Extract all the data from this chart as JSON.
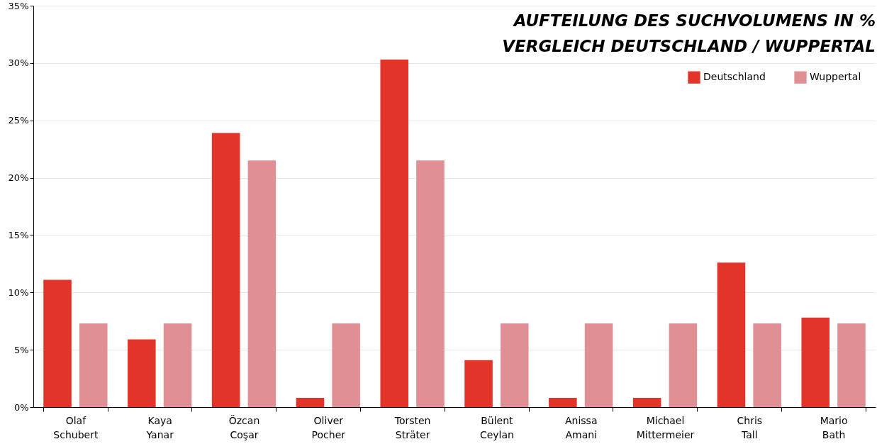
{
  "chart_data": {
    "type": "bar",
    "title": "AUFTEILUNG DES SUCHVOLUMENS IN %\nVERGLEICH DEUTSCHLAND / WUPPERTAL",
    "categories": [
      "Olaf\nSchubert",
      "Kaya\nYanar",
      "Özcan\nCoşar",
      "Oliver\nPocher",
      "Torsten\nSträter",
      "Bülent\nCeylan",
      "Anissa\nAmani",
      "Michael\nMittermeier",
      "Chris\nTall",
      "Mario\nBath"
    ],
    "series": [
      {
        "name": "Deutschland",
        "color": "#e3342a",
        "values": [
          11.1,
          5.9,
          23.9,
          0.8,
          30.3,
          4.1,
          0.8,
          0.8,
          12.6,
          7.8
        ]
      },
      {
        "name": "Wuppertal",
        "color": "#e09094",
        "values": [
          7.3,
          7.3,
          21.5,
          7.3,
          21.5,
          7.3,
          7.3,
          7.3,
          7.3,
          7.3
        ]
      }
    ],
    "ylim": [
      0,
      35
    ],
    "yticks": [
      {
        "value": 0,
        "label": "0%"
      },
      {
        "value": 5,
        "label": "5%"
      },
      {
        "value": 10,
        "label": "10%"
      },
      {
        "value": 15,
        "label": "15%"
      },
      {
        "value": 20,
        "label": "20%"
      },
      {
        "value": 25,
        "label": "25%"
      },
      {
        "value": 30,
        "label": "30%"
      },
      {
        "value": 35,
        "label": "35%"
      }
    ],
    "grid": "y",
    "legend": "top right"
  }
}
